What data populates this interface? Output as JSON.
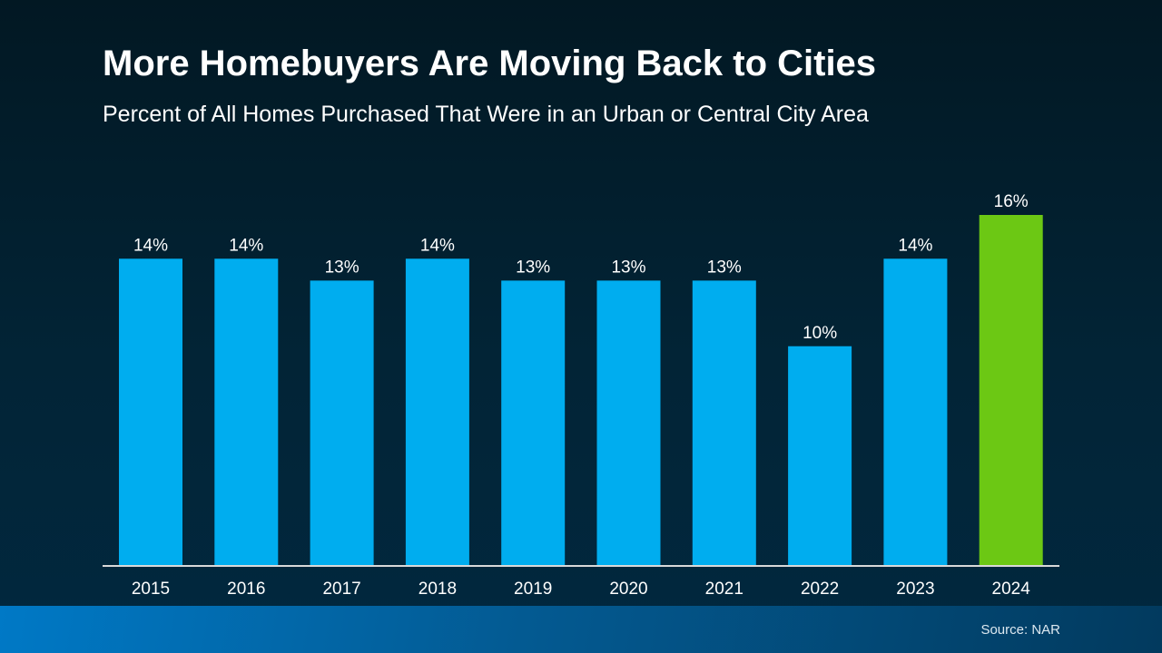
{
  "chart_data": {
    "type": "bar",
    "title": "More Homebuyers Are Moving Back to Cities",
    "subtitle": "Percent of All Homes Purchased That Were in an Urban or Central City Area",
    "categories": [
      "2015",
      "2016",
      "2017",
      "2018",
      "2019",
      "2020",
      "2021",
      "2022",
      "2023",
      "2024"
    ],
    "values": [
      14,
      14,
      13,
      14,
      13,
      13,
      13,
      10,
      14,
      16
    ],
    "data_labels": [
      "14%",
      "14%",
      "13%",
      "14%",
      "13%",
      "13%",
      "13%",
      "10%",
      "14%",
      "16%"
    ],
    "xlabel": "",
    "ylabel": "",
    "ylim": [
      0,
      16
    ],
    "grid": false,
    "colors": {
      "default": "#00adef",
      "highlight": "#6cc814",
      "highlight_category": "2024"
    }
  },
  "footer": {
    "source": "Source: NAR"
  }
}
